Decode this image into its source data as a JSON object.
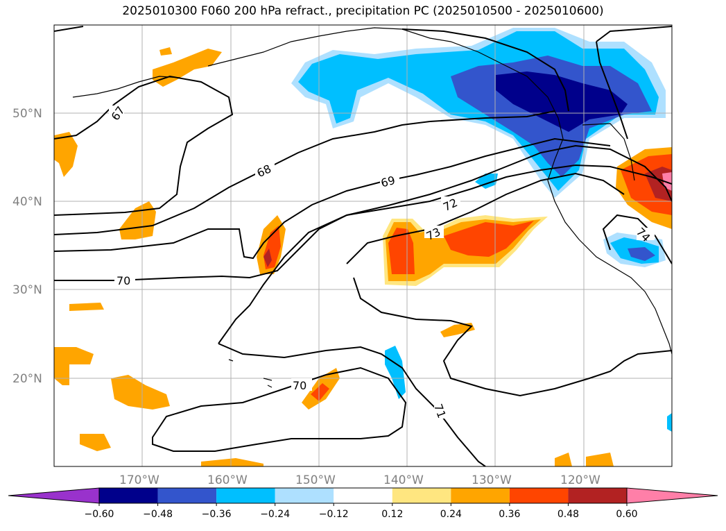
{
  "title": "2025010300 F060 200 hPa refract., precipitation PC (2025010500 - 2025010600)",
  "map": {
    "lat_labels": [
      "50°N",
      "40°N",
      "30°N",
      "20°N"
    ],
    "lon_labels": [
      "170°W",
      "160°W",
      "150°W",
      "140°W",
      "130°W",
      "120°W"
    ],
    "contour_labels": [
      "67",
      "68",
      "69",
      "70",
      "72",
      "73",
      "74",
      "70",
      "71"
    ],
    "grid": true
  },
  "colorbar": {
    "tick_labels": [
      "−0.60",
      "−0.48",
      "−0.36",
      "−0.24",
      "−0.12",
      "0.12",
      "0.24",
      "0.36",
      "0.48",
      "0.60"
    ],
    "colors": [
      "#9932cc",
      "#00008b",
      "#3355cc",
      "#00bfff",
      "#aee0ff",
      "#ffffff",
      "#ffe680",
      "#ffa500",
      "#ff4500",
      "#b22222",
      "#ff7fa8"
    ],
    "extend": "both"
  }
}
